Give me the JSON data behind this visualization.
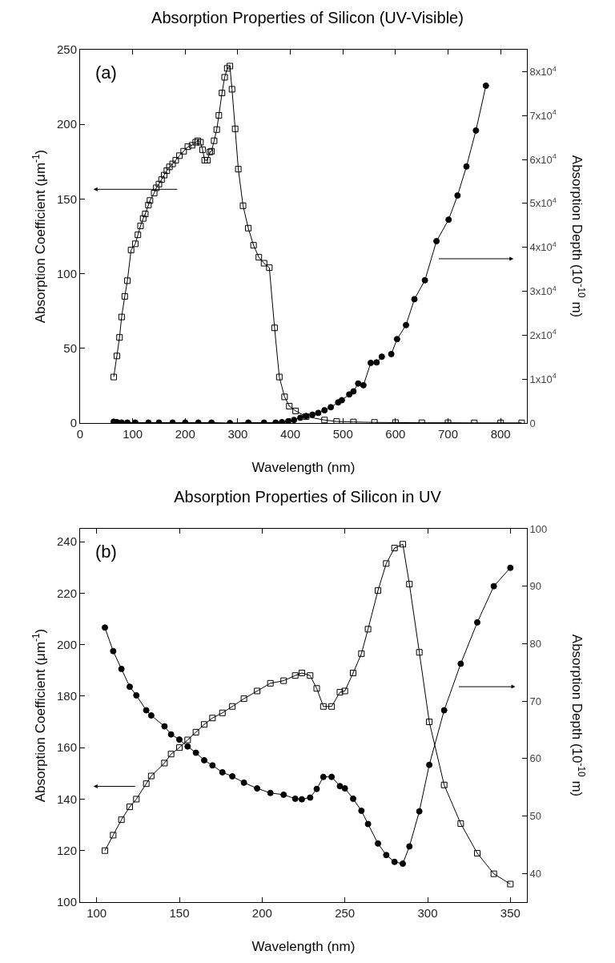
{
  "chart_data": [
    {
      "type": "line",
      "title": "Absorption Properties of Silicon (UV-Visible)",
      "xlabel": "Wavelength (nm)",
      "ylabel": "Absorption Coefficient (μm$^{-1}$)",
      "y2label": "Absorption Depth (10$^{-10}$ m)",
      "annotations": [
        "(a)"
      ],
      "xlim": [
        0,
        850
      ],
      "xticks": [
        0,
        100,
        200,
        300,
        400,
        500,
        600,
        700,
        800
      ],
      "ylim": [
        0,
        250
      ],
      "yticks": [
        0,
        50,
        100,
        150,
        200,
        250
      ],
      "y2lim": [
        0,
        85000
      ],
      "y2ticks": [
        0,
        {
          "value": 10000,
          "label": "1x10$^{4}$"
        },
        {
          "value": 20000,
          "label": "2x10$^{4}$"
        },
        {
          "value": 30000,
          "label": "3x10$^{4}$"
        },
        {
          "value": 40000,
          "label": "4x10$^{4}$"
        },
        {
          "value": 50000,
          "label": "5x10$^{4}$"
        },
        {
          "value": 60000,
          "label": "6x10$^{4}$"
        },
        {
          "value": 70000,
          "label": "7x10$^{4}$"
        },
        {
          "value": 80000,
          "label": "8x10$^{4}$"
        }
      ],
      "grid": false,
      "line_style": "solid",
      "series": [
        {
          "color": "#000000",
          "marker": "square",
          "axis": "y",
          "x": [
            64,
            70,
            75,
            79,
            85,
            90,
            97,
            105,
            110,
            115,
            120,
            124,
            130,
            133,
            141,
            145,
            150,
            155,
            160,
            165,
            170,
            176,
            182,
            189,
            197,
            205,
            213,
            220,
            224,
            229,
            233,
            237,
            242,
            247,
            250,
            255,
            260,
            264,
            270,
            275,
            280,
            285,
            289,
            295,
            301,
            310,
            320,
            330,
            340,
            350,
            360,
            370,
            379,
            389,
            398,
            410,
            430,
            465,
            488,
            520,
            560,
            600,
            650,
            700,
            750,
            800,
            840
          ],
          "values": [
            30.8,
            44.9,
            57.3,
            71,
            84.8,
            95.3,
            115.8,
            120,
            126,
            132,
            137,
            140,
            146,
            149,
            154,
            157.5,
            160,
            163,
            166,
            169,
            171.5,
            173.5,
            176,
            179,
            182,
            185,
            186,
            188,
            189,
            188,
            183,
            176,
            176,
            181.5,
            182,
            189,
            196.5,
            206,
            221,
            231.5,
            237.5,
            239,
            223.5,
            197,
            170,
            145.5,
            130.5,
            119,
            111,
            107,
            104,
            63.7,
            30.8,
            17.5,
            11.3,
            8.1,
            4.3,
            2,
            1,
            0.7,
            0.4,
            0.3,
            0.2,
            0.2,
            0.1,
            0.1,
            0.1
          ]
        },
        {
          "color": "#000000",
          "marker": "circle",
          "axis": "y2",
          "x": [
            64,
            70,
            79,
            90,
            105,
            130,
            150,
            176,
            200,
            225,
            250,
            285,
            320,
            350,
            372,
            384,
            396,
            407,
            419,
            430,
            442,
            453,
            465,
            477,
            491,
            498,
            512,
            520,
            529,
            539,
            553,
            564,
            574,
            588,
            592,
            603,
            620,
            636,
            656,
            678,
            701,
            718,
            735,
            753,
            772
          ],
          "values": [
            300,
            200,
            100,
            100,
            100,
            100,
            100,
            100,
            100,
            100,
            100,
            0,
            100,
            100,
            100,
            200,
            400,
            700,
            1200,
            1600,
            1900,
            2300,
            2900,
            3600,
            4700,
            5200,
            6500,
            7200,
            9000,
            8600,
            13700,
            13800,
            15100,
            null,
            15700,
            19100,
            22300,
            28200,
            32500,
            41400,
            46300,
            51800,
            58400,
            66600,
            76800
          ]
        }
      ]
    },
    {
      "type": "line",
      "title": "Absorption Properties of Silicon in UV",
      "xlabel": "Wavelength (nm)",
      "ylabel": "Absorption Coefficient (μm$^{-1}$)",
      "y2label": "Absorption Depth (10$^{-10}$ m)",
      "annotations": [
        "(b)"
      ],
      "xlim": [
        90,
        360
      ],
      "xticks": [
        100,
        150,
        200,
        250,
        300,
        350
      ],
      "ylim": [
        100,
        245
      ],
      "yticks": [
        100,
        120,
        140,
        160,
        180,
        200,
        220,
        240
      ],
      "y2lim": [
        35,
        100
      ],
      "y2ticks": [
        40,
        50,
        60,
        70,
        80,
        90,
        100
      ],
      "grid": false,
      "line_style": "solid",
      "x": [
        105,
        110,
        115,
        120,
        124,
        130,
        133,
        141,
        145,
        150,
        155,
        160,
        165,
        170,
        176,
        182,
        189,
        197,
        205,
        213,
        220,
        224,
        229,
        233,
        237,
        242,
        247,
        250,
        255,
        260,
        264,
        270,
        275,
        280,
        285,
        289,
        295,
        301,
        310,
        320,
        330,
        340,
        350
      ],
      "series": [
        {
          "color": "#000000",
          "marker": "square",
          "axis": "y",
          "values": [
            120,
            126,
            132,
            137,
            140,
            146,
            149,
            154,
            157.5,
            160,
            163,
            166,
            169,
            171.5,
            173.5,
            176,
            179,
            182,
            185,
            186,
            188,
            189,
            188,
            183,
            176,
            176,
            181.5,
            182,
            189,
            196.5,
            206,
            221,
            231.5,
            237.5,
            239,
            223.5,
            197,
            170,
            145.5,
            130.5,
            119,
            111,
            107
          ]
        },
        {
          "color": "#000000",
          "marker": "circle",
          "axis": "y2",
          "values": [
            82.8,
            78.7,
            75.6,
            72.5,
            71,
            68.4,
            67.5,
            65.6,
            64.2,
            63.3,
            62.1,
            61,
            59.7,
            58.8,
            57.6,
            56.9,
            55.8,
            54.8,
            54,
            53.7,
            53,
            52.9,
            53.2,
            54.7,
            56.8,
            56.8,
            55.2,
            54.8,
            53,
            50.9,
            48.6,
            45.2,
            43.2,
            42,
            41.7,
            44.7,
            50.8,
            58.9,
            68.4,
            76.5,
            83.7,
            90,
            93.2
          ]
        }
      ]
    }
  ]
}
